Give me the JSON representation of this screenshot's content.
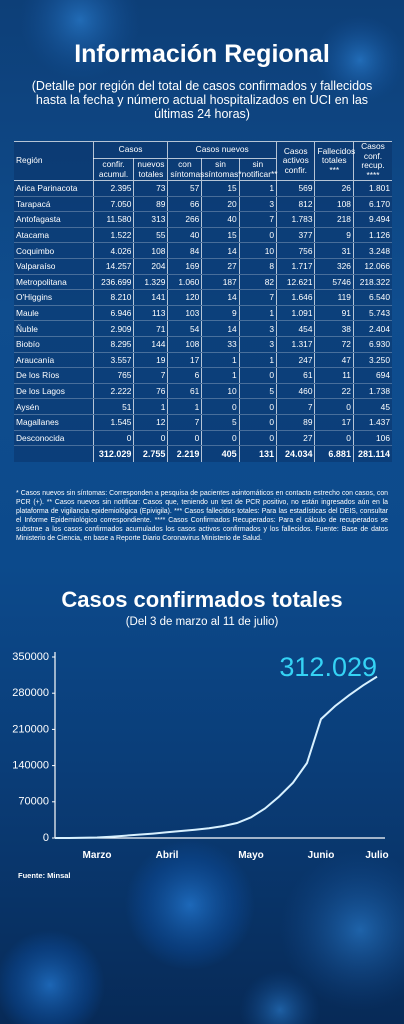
{
  "header": {
    "title": "Información Regional",
    "subtitle": "(Detalle por región del total de casos confirmados y fallecidos hasta la fecha y número actual hospitalizados en UCI en las últimas 24 horas)"
  },
  "table": {
    "region_header": "Región",
    "groups": [
      {
        "label": "Casos",
        "columns": [
          "confir. acumul.",
          "nuevos totales"
        ]
      },
      {
        "label": "Casos nuevos",
        "columns": [
          "con síntomas",
          "sin síntomas*",
          "sin notificar**"
        ]
      }
    ],
    "single_columns": [
      "Casos activos confir.",
      "Fallecidos totales ***",
      "Casos conf. recup. ****"
    ],
    "rows": [
      [
        "Arica Parinacota",
        "2.395",
        "73",
        "57",
        "15",
        "1",
        "569",
        "26",
        "1.801"
      ],
      [
        "Tarapacá",
        "7.050",
        "89",
        "66",
        "20",
        "3",
        "812",
        "108",
        "6.170"
      ],
      [
        "Antofagasta",
        "11.580",
        "313",
        "266",
        "40",
        "7",
        "1.783",
        "218",
        "9.494"
      ],
      [
        "Atacama",
        "1.522",
        "55",
        "40",
        "15",
        "0",
        "377",
        "9",
        "1.126"
      ],
      [
        "Coquimbo",
        "4.026",
        "108",
        "84",
        "14",
        "10",
        "756",
        "31",
        "3.248"
      ],
      [
        "Valparaíso",
        "14.257",
        "204",
        "169",
        "27",
        "8",
        "1.717",
        "326",
        "12.066"
      ],
      [
        "Metropolitana",
        "236.699",
        "1.329",
        "1.060",
        "187",
        "82",
        "12.621",
        "5746",
        "218.322"
      ],
      [
        "O'Higgins",
        "8.210",
        "141",
        "120",
        "14",
        "7",
        "1.646",
        "119",
        "6.540"
      ],
      [
        "Maule",
        "6.946",
        "113",
        "103",
        "9",
        "1",
        "1.091",
        "91",
        "5.743"
      ],
      [
        "Ñuble",
        "2.909",
        "71",
        "54",
        "14",
        "3",
        "454",
        "38",
        "2.404"
      ],
      [
        "Biobío",
        "8.295",
        "144",
        "108",
        "33",
        "3",
        "1.317",
        "72",
        "6.930"
      ],
      [
        "Araucanía",
        "3.557",
        "19",
        "17",
        "1",
        "1",
        "247",
        "47",
        "3.250"
      ],
      [
        "De los Ríos",
        "765",
        "7",
        "6",
        "1",
        "0",
        "61",
        "11",
        "694"
      ],
      [
        "De los Lagos",
        "2.222",
        "76",
        "61",
        "10",
        "5",
        "460",
        "22",
        "1.738"
      ],
      [
        "Aysén",
        "51",
        "1",
        "1",
        "0",
        "0",
        "7",
        "0",
        "45"
      ],
      [
        "Magallanes",
        "1.545",
        "12",
        "7",
        "5",
        "0",
        "89",
        "17",
        "1.437"
      ],
      [
        "Desconocida",
        "0",
        "0",
        "0",
        "0",
        "0",
        "27",
        "0",
        "106"
      ]
    ],
    "totals": [
      "312.029",
      "2.755",
      "2.219",
      "405",
      "131",
      "24.034",
      "6.881",
      "281.114"
    ]
  },
  "footnote": "* Casos nuevos sin síntomas: Corresponden a pesquisa de pacientes asintomáticos en contacto estrecho con casos, con PCR (+). ** Casos nuevos sin notificar: Casos que, teniendo un test de PCR positivo, no están ingresados aún en la plataforma de vigilancia epidemiológica (Epivigila). *** Casos fallecidos totales: Para las estadísticas del DEIS, consultar el Informe Epidemiológico correspondiente. **** Casos Confirmados Recuperados: Para el cálculo de recuperados se substrae a los casos confirmados acumulados los casos activos confirmados y los fallecidos. Fuente: Base de datos Ministerio de Ciencia, en base a Reporte Diario Coronavirus Ministerio de Salud.",
  "chart_data": {
    "type": "line",
    "title": "Casos confirmados totales",
    "subtitle": "(Del 3 de marzo al 11 de julio)",
    "annotation": "312.029",
    "categories": [
      null,
      null,
      null,
      "Marzo",
      null,
      null,
      null,
      null,
      "Abril",
      null,
      null,
      null,
      null,
      null,
      "Mayo",
      null,
      null,
      null,
      null,
      "Junio",
      null,
      null,
      null,
      "Julio"
    ],
    "values": [
      0,
      0,
      300,
      1000,
      2500,
      4500,
      6500,
      8500,
      11000,
      13500,
      16000,
      19000,
      23000,
      29000,
      40000,
      57000,
      80000,
      107000,
      145000,
      230000,
      255000,
      276000,
      295000,
      312029
    ],
    "color": "#d8f1ff",
    "annotation_color": "#35d3f5",
    "ylim": [
      0,
      350000
    ],
    "yticks": [
      0,
      70000,
      140000,
      210000,
      280000,
      350000
    ],
    "grid": false
  },
  "source": "Fuente: Minsal"
}
